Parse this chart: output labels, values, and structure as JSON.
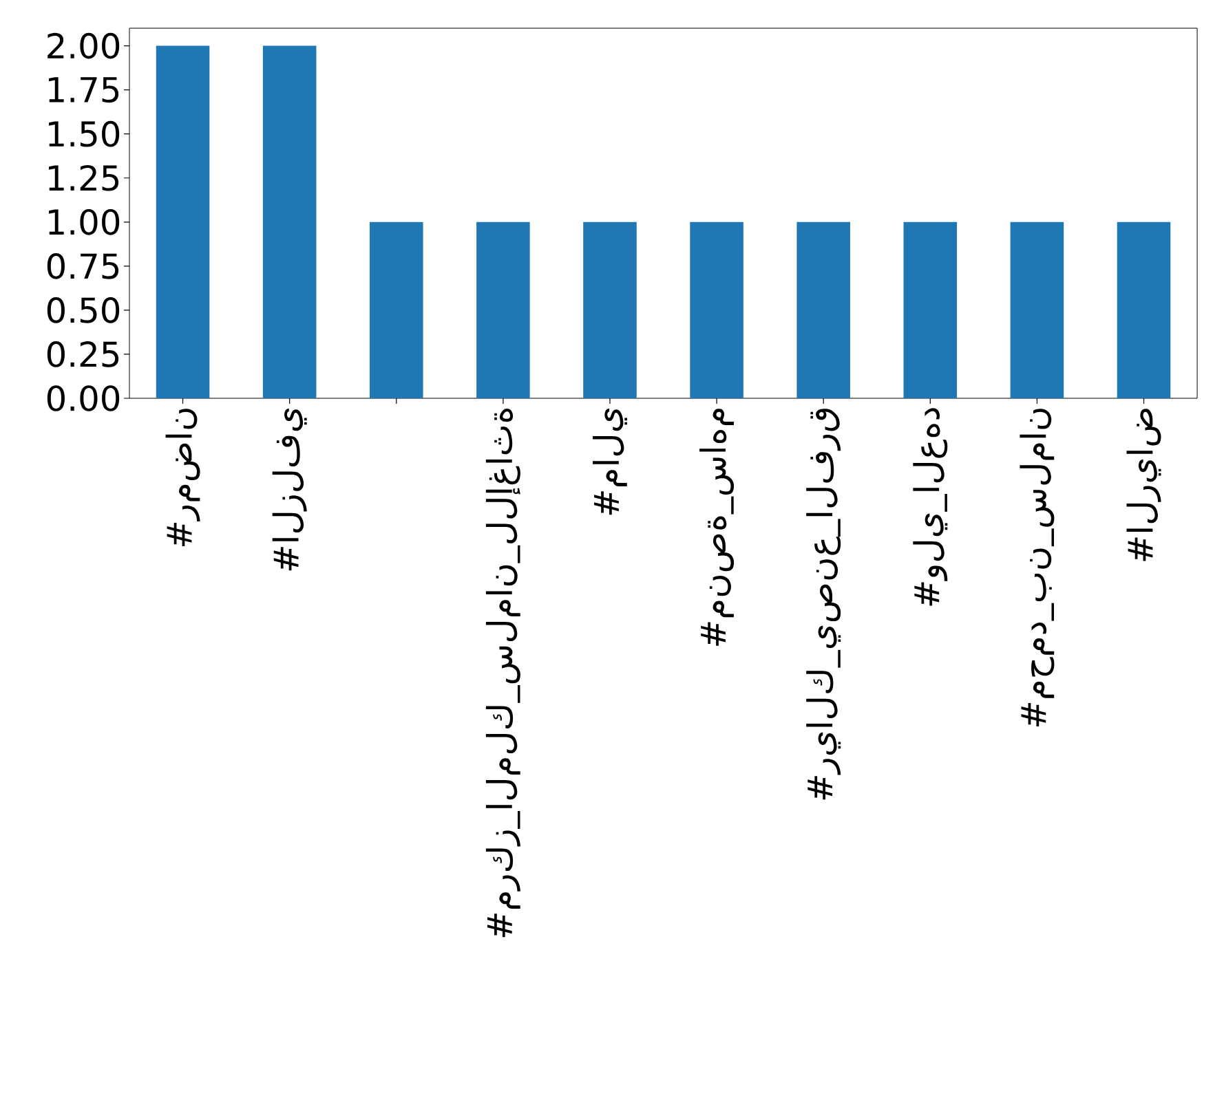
{
  "chart_data": {
    "type": "bar",
    "categories": [
      "#رمضان",
      "#الزلفي",
      null,
      "#مركز_الملك_سلمان_للإغاثة",
      "#مالي",
      "#منصة_ساهم",
      "#ريالك_يصنع_الفرق",
      "#ولي_العهد",
      "#محمد_بن_سلمان",
      "#الرياض"
    ],
    "values": [
      2,
      2,
      1,
      1,
      1,
      1,
      1,
      1,
      1,
      1
    ],
    "color": "#1f77b4",
    "ylim": [
      0,
      2.1
    ],
    "yticks": [
      {
        "value": 0,
        "label": "0.00"
      },
      {
        "value": 0.25,
        "label": "0.25"
      },
      {
        "value": 0.5,
        "label": "0.50"
      },
      {
        "value": 0.75,
        "label": "0.75"
      },
      {
        "value": 1,
        "label": "1.00"
      },
      {
        "value": 1.25,
        "label": "1.25"
      },
      {
        "value": 1.5,
        "label": "1.50"
      },
      {
        "value": 1.75,
        "label": "1.75"
      },
      {
        "value": 2,
        "label": "2.00"
      }
    ]
  }
}
